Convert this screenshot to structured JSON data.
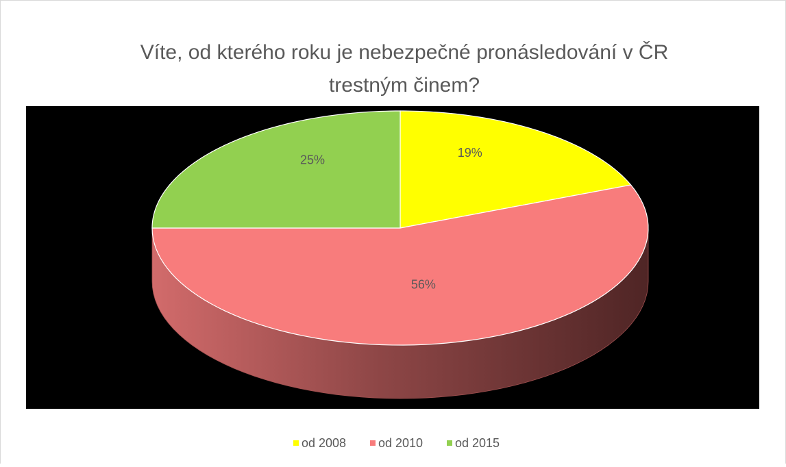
{
  "chart_data": {
    "type": "pie",
    "title": "Víte, od kterého roku je nebezpečné pronásledování v ČR trestným činem?",
    "categories": [
      "od 2008",
      "od 2010",
      "od 2015"
    ],
    "values": [
      19,
      56,
      25
    ],
    "value_labels": [
      "19%",
      "56%",
      "25%"
    ],
    "colors": [
      "#ffff00",
      "#f87c7c",
      "#92d050"
    ],
    "legend": "bottom"
  }
}
